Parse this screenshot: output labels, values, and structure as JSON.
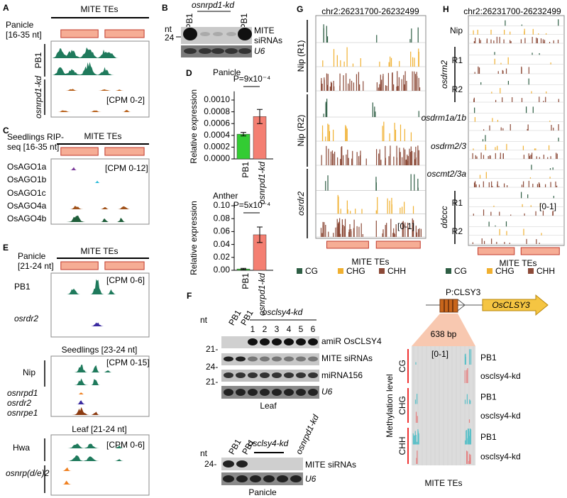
{
  "chart_data": [
    {
      "type": "bar",
      "title": "Panicle",
      "y_label": "Relative expression",
      "categories": [
        "PB1",
        "osnrpd1-kd"
      ],
      "values": [
        0.00042,
        0.00072
      ],
      "errors": [
        3e-05,
        0.00012
      ],
      "colors": [
        "#33cc33",
        "#f47f72"
      ],
      "ylim": [
        0,
        0.0011
      ],
      "yticks": [
        {
          "value": 0,
          "label": "0.0000"
        },
        0.0002,
        0.0004,
        0.0006,
        0.0008,
        {
          "value": 0.001,
          "label": "0.0010"
        }
      ],
      "annotation": "P=9x10⁻⁴"
    },
    {
      "type": "bar",
      "title": "Anther",
      "y_label": "Relative expression",
      "categories": [
        "PB1",
        "osnrpd1-kd"
      ],
      "values": [
        0.002,
        0.055
      ],
      "errors": [
        0.001,
        0.012
      ],
      "colors": [
        "#33cc33",
        "#f47f72"
      ],
      "ylim": [
        0,
        0.1
      ],
      "yticks": [
        {
          "value": 0,
          "label": "0.00"
        },
        0.02,
        0.04,
        0.06,
        0.08,
        {
          "value": 0.1,
          "label": "0.10"
        }
      ],
      "annotation": "P=5x10⁻⁴"
    }
  ],
  "A": {
    "label": "A",
    "title": "MITE TEs",
    "tissue": "Panicle",
    "size": "[16-35 nt]",
    "samples": [
      "PB1",
      "osnrpd1-kd"
    ],
    "scale": "[CPM 0-2]"
  },
  "B": {
    "label": "B",
    "group": "osnrpd1-kd",
    "lanes": [
      "PB1",
      "PB1"
    ],
    "unit": "nt",
    "marker": "24",
    "probe": [
      "MITE",
      "siRNAs"
    ],
    "control": "U6"
  },
  "C": {
    "label": "C",
    "tissue": [
      "Seedlings RIP-",
      "seq [16-35 nt]"
    ],
    "title": "MITE TEs",
    "scale": "[CPM 0-12]",
    "samples": [
      "OsAGO1a",
      "OsAGO1b",
      "OsAGO1c",
      "OsAGO4a",
      "OsAGO4b"
    ],
    "colors": [
      "#7a3a9a",
      "#22b8d8",
      "#2a4a7a",
      "#a0521a",
      "#1f5e3a"
    ]
  },
  "D": {
    "label": "D"
  },
  "E": {
    "label": "E",
    "panicle": {
      "tissue": "Panicle",
      "size": "[21-24 nt]",
      "title": "MITE TEs",
      "scale": "[CPM 0-6]",
      "samples": [
        "PB1",
        "osrdr2"
      ]
    },
    "seedlings": {
      "tissue": "Seedlings [23-24 nt]",
      "scale": "[CPM 0-15]",
      "samples": [
        "Nip",
        "osnrpd1",
        "osrdr2",
        "osnrpe1"
      ]
    },
    "leaf": {
      "tissue": "Leaf [21-24 nt]",
      "scale": "[CPM 0-6]",
      "samples": [
        "Hwa",
        "osnrp(d/e)2"
      ]
    }
  },
  "F": {
    "label": "F",
    "leaf": {
      "unit": "nt",
      "lanes": [
        "PB1",
        "PB1"
      ],
      "group": "osclsy4-kd",
      "lines": [
        "1",
        "2",
        "3",
        "4",
        "5",
        "6"
      ],
      "markers": [
        "21-",
        "24-",
        "21-"
      ],
      "probes": [
        "amiR OsCLSY4",
        "MITE siRNAs",
        "miRNA156",
        "U6"
      ],
      "tissue": "Leaf"
    },
    "panicle": {
      "unit": "nt",
      "lanes": [
        "PB1",
        "PB1"
      ],
      "group": "osclsy4-kd",
      "control_line": "osnrpd1-kd",
      "marker": "24-",
      "probes": [
        "MITE siRNAs",
        "U6"
      ],
      "tissue": "Panicle"
    },
    "clsy3": {
      "promoter": "P:CLSY3",
      "gene": "OsCLSY3",
      "length": "638 bp",
      "scale": "[0-1]",
      "y_label": "Methylation level",
      "contexts": [
        "CG",
        "CHG",
        "CHH"
      ],
      "samples": [
        "PB1",
        "osclsy4-kd"
      ],
      "title": "MITE TEs"
    }
  },
  "G": {
    "label": "G",
    "region": "chr2:26231700-26232499",
    "samples": [
      "Nip (R1)",
      "Nip (R2)",
      "osrdr2"
    ],
    "scale": "[0-1]",
    "title": "MITE TEs",
    "legend": [
      {
        "name": "CG",
        "color": "#2e5e44"
      },
      {
        "name": "CHG",
        "color": "#f0b030"
      },
      {
        "name": "CHH",
        "color": "#8c4a38"
      }
    ]
  },
  "H": {
    "label": "H",
    "region": "chr2:26231700-26232499",
    "samples": [
      "Nip",
      "osdrm2",
      "osdrm1a/1b",
      "osdrm2/3",
      "oscmt2/3a",
      "ddccc"
    ],
    "replicates": [
      "R1",
      "R2"
    ],
    "scale": "[0-1]",
    "title": "MITE TEs"
  }
}
